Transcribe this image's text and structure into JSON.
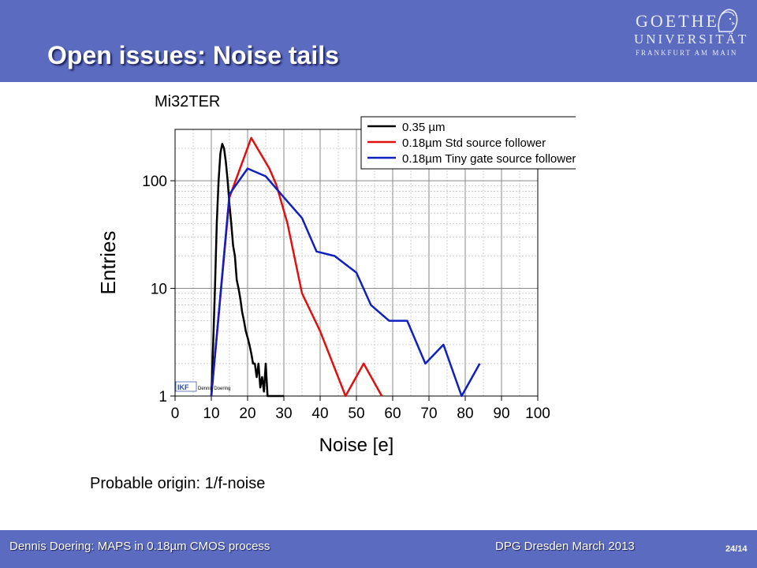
{
  "slide": {
    "title": "Open issues: Noise tails",
    "origin_text": "Probable origin: 1/f-noise"
  },
  "logo": {
    "line1": "GOETHE",
    "line2": "UNIVERSITÄT",
    "line3": "FRANKFURT AM MAIN"
  },
  "footer": {
    "left": "Dennis Doering: MAPS in 0.18µm CMOS process",
    "mid": "DPG Dresden March 2013",
    "page": "24/14"
  },
  "colors": {
    "header": "#5b6bbf",
    "black_series": "#000000",
    "red_series": "#e01010",
    "blue_series": "#1020c0"
  },
  "watermark": {
    "logo": "IKF",
    "name": "Dennis Doering"
  },
  "chart_data": {
    "type": "line",
    "title": "Mi32TER",
    "xlabel": "Noise [e]",
    "ylabel": "Entries",
    "xlim": [
      0,
      100
    ],
    "ylim": [
      1,
      300
    ],
    "yscale": "log",
    "xticks": [
      0,
      10,
      20,
      30,
      40,
      50,
      60,
      70,
      80,
      90,
      100
    ],
    "yticks": [
      1,
      10,
      100
    ],
    "grid": true,
    "legend_position": "top-right",
    "series": [
      {
        "name": "0.35 µm",
        "color": "#000000",
        "x": [
          10,
          10.5,
          11,
          11.5,
          12,
          12.5,
          13,
          13.5,
          14,
          14.5,
          15,
          15.5,
          16,
          16.5,
          17,
          17.5,
          18,
          18.5,
          19,
          19.5,
          20,
          20.5,
          21,
          21.5,
          22,
          22.5,
          23,
          23.5,
          24,
          24.5,
          25,
          25.5,
          26,
          30
        ],
        "y": [
          1,
          3,
          10,
          40,
          100,
          180,
          220,
          200,
          150,
          100,
          60,
          40,
          25,
          20,
          12,
          10,
          8,
          6,
          5,
          4,
          3.5,
          3,
          2.5,
          2,
          2,
          1.5,
          2,
          1.2,
          1.5,
          1.1,
          2,
          1,
          1,
          1
        ]
      },
      {
        "name": "0.18µm Std source follower",
        "color": "#e01010",
        "x": [
          10,
          15,
          21,
          26,
          28,
          31,
          35,
          40,
          47,
          52,
          57
        ],
        "y": [
          1,
          70,
          250,
          130,
          90,
          40,
          9,
          4,
          1,
          2,
          1
        ]
      },
      {
        "name": "0.18µm Tiny gate source follower",
        "color": "#1020c0",
        "x": [
          10,
          15,
          20,
          25,
          30,
          35,
          39,
          44,
          50,
          54,
          59,
          64,
          69,
          74,
          79,
          84
        ],
        "y": [
          1,
          75,
          130,
          110,
          70,
          45,
          22,
          20,
          14,
          7,
          5,
          5,
          2,
          3,
          1,
          2
        ]
      }
    ]
  }
}
